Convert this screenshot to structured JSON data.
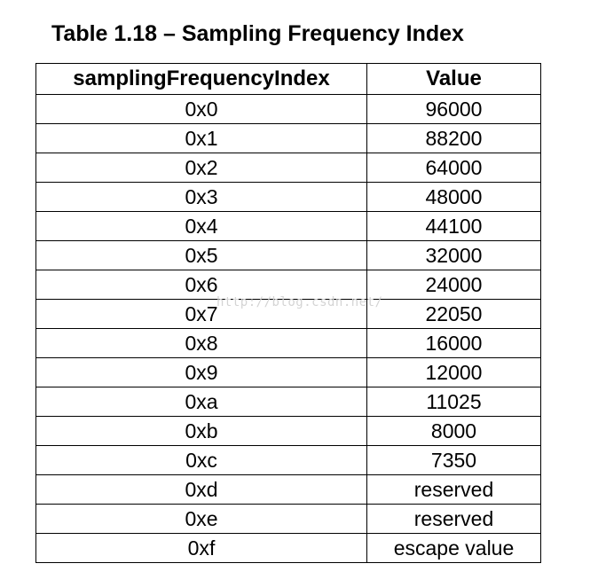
{
  "caption": "Table 1.18 – Sampling Frequency Index",
  "table": {
    "headers": [
      "samplingFrequencyIndex",
      "Value"
    ],
    "rows": [
      [
        "0x0",
        "96000"
      ],
      [
        "0x1",
        "88200"
      ],
      [
        "0x2",
        "64000"
      ],
      [
        "0x3",
        "48000"
      ],
      [
        "0x4",
        "44100"
      ],
      [
        "0x5",
        "32000"
      ],
      [
        "0x6",
        "24000"
      ],
      [
        "0x7",
        "22050"
      ],
      [
        "0x8",
        "16000"
      ],
      [
        "0x9",
        "12000"
      ],
      [
        "0xa",
        "11025"
      ],
      [
        "0xb",
        "8000"
      ],
      [
        "0xc",
        "7350"
      ],
      [
        "0xd",
        "reserved"
      ],
      [
        "0xe",
        "reserved"
      ],
      [
        "0xf",
        "escape value"
      ]
    ]
  },
  "watermark": "http://blog.csdn.net/"
}
